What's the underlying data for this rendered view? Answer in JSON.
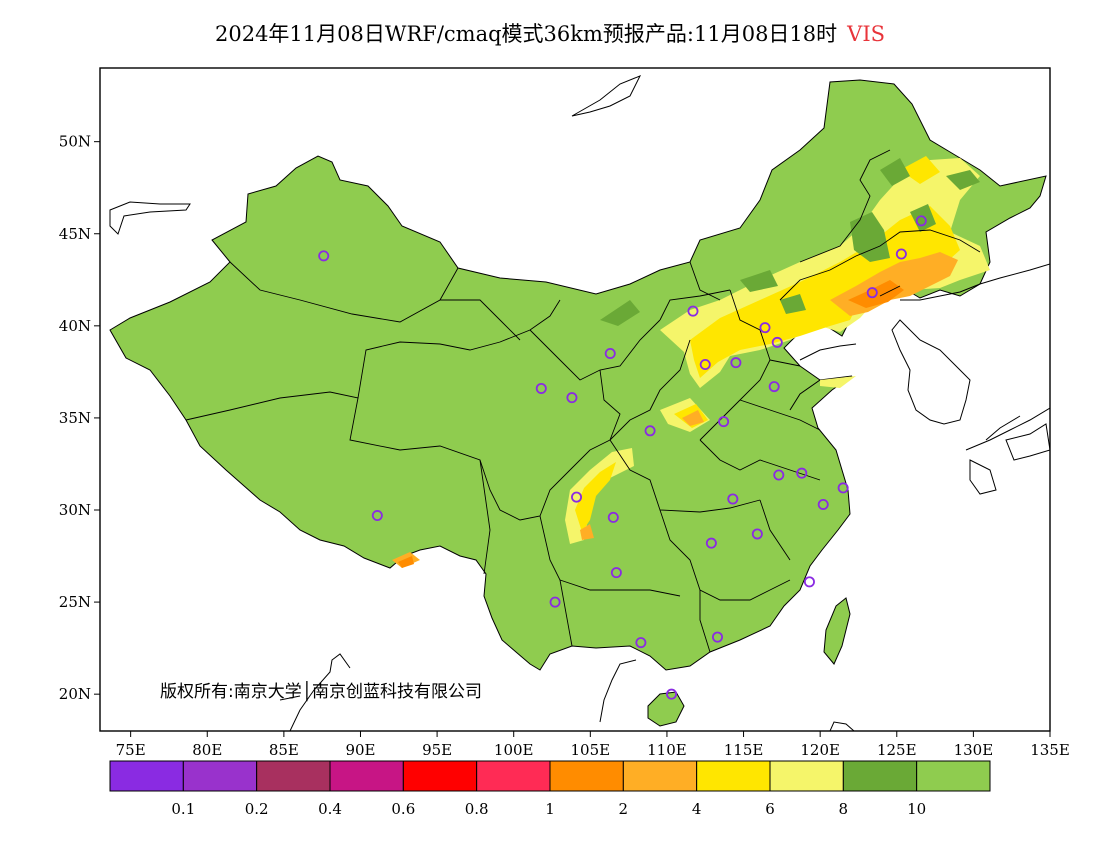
{
  "title": {
    "main": "2024年11月08日WRF/cmaq模式36km预报产品:11月08日18时",
    "variable": "VIS"
  },
  "copyright": "版权所有:南京大学│南京创蓝科技有限公司",
  "map": {
    "lon_range": [
      73,
      135
    ],
    "lat_range": [
      18,
      54
    ],
    "lat_ticks": [
      {
        "value": 20,
        "label": "20N"
      },
      {
        "value": 25,
        "label": "25N"
      },
      {
        "value": 30,
        "label": "30N"
      },
      {
        "value": 35,
        "label": "35N"
      },
      {
        "value": 40,
        "label": "40N"
      },
      {
        "value": 45,
        "label": "45N"
      },
      {
        "value": 50,
        "label": "50N"
      }
    ],
    "lon_ticks": [
      {
        "value": 75,
        "label": "75E"
      },
      {
        "value": 80,
        "label": "80E"
      },
      {
        "value": 85,
        "label": "85E"
      },
      {
        "value": 90,
        "label": "90E"
      },
      {
        "value": 95,
        "label": "95E"
      },
      {
        "value": 100,
        "label": "100E"
      },
      {
        "value": 105,
        "label": "105E"
      },
      {
        "value": 110,
        "label": "110E"
      },
      {
        "value": 115,
        "label": "115E"
      },
      {
        "value": 120,
        "label": "120E"
      },
      {
        "value": 125,
        "label": "125E"
      },
      {
        "value": 130,
        "label": "130E"
      },
      {
        "value": 135,
        "label": "135E"
      }
    ],
    "stations": [
      {
        "lon": 87.6,
        "lat": 43.8
      },
      {
        "lon": 91.1,
        "lat": 29.7
      },
      {
        "lon": 101.8,
        "lat": 36.6
      },
      {
        "lon": 103.8,
        "lat": 36.1
      },
      {
        "lon": 106.3,
        "lat": 38.5
      },
      {
        "lon": 111.7,
        "lat": 40.8
      },
      {
        "lon": 116.4,
        "lat": 39.9
      },
      {
        "lon": 117.2,
        "lat": 39.1
      },
      {
        "lon": 114.5,
        "lat": 38.0
      },
      {
        "lon": 112.5,
        "lat": 37.9
      },
      {
        "lon": 117.0,
        "lat": 36.7
      },
      {
        "lon": 113.7,
        "lat": 34.8
      },
      {
        "lon": 108.9,
        "lat": 34.3
      },
      {
        "lon": 104.1,
        "lat": 30.7
      },
      {
        "lon": 106.5,
        "lat": 29.6
      },
      {
        "lon": 106.7,
        "lat": 26.6
      },
      {
        "lon": 102.7,
        "lat": 25.0
      },
      {
        "lon": 108.3,
        "lat": 22.8
      },
      {
        "lon": 113.3,
        "lat": 23.1
      },
      {
        "lon": 110.3,
        "lat": 20.0
      },
      {
        "lon": 119.3,
        "lat": 26.1
      },
      {
        "lon": 115.9,
        "lat": 28.7
      },
      {
        "lon": 112.9,
        "lat": 28.2
      },
      {
        "lon": 114.3,
        "lat": 30.6
      },
      {
        "lon": 117.3,
        "lat": 31.9
      },
      {
        "lon": 118.8,
        "lat": 32.0
      },
      {
        "lon": 120.2,
        "lat": 30.3
      },
      {
        "lon": 121.5,
        "lat": 31.2
      },
      {
        "lon": 123.4,
        "lat": 41.8
      },
      {
        "lon": 125.3,
        "lat": 43.9
      },
      {
        "lon": 126.6,
        "lat": 45.7
      }
    ]
  },
  "legend": {
    "colors": [
      "#8a2be2",
      "#9932cc",
      "#a8305f",
      "#c71585",
      "#ff0000",
      "#ff2b55",
      "#ff8c00",
      "#ffae25",
      "#ffe600",
      "#f5f56a",
      "#6aa936",
      "#8fcc4f"
    ],
    "labels": [
      "0.1",
      "0.2",
      "0.4",
      "0.6",
      "0.8",
      "1",
      "2",
      "4",
      "6",
      "8",
      "10"
    ]
  },
  "colors": {
    "land_default": "#8fcc4f",
    "water": "#ffffff"
  }
}
